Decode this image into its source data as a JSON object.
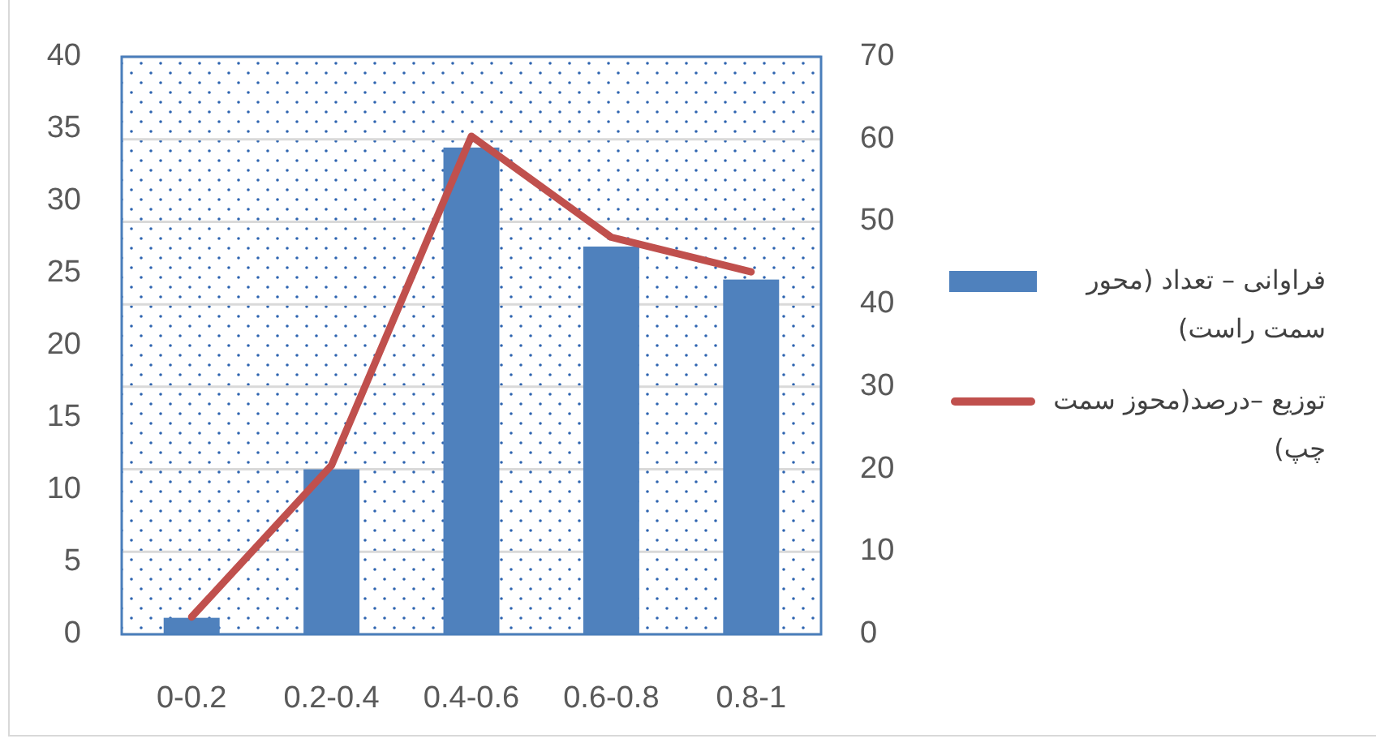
{
  "chart_data": {
    "type": "bar",
    "categories": [
      "0-0.2",
      "0.2-0.4",
      "0.4-0.6",
      "0.6-0.8",
      "0.8-1"
    ],
    "series": [
      {
        "name": "فراوانی – تعداد (محور سمت راست)",
        "axis": "y2",
        "color": "#4f81bd",
        "values": [
          2,
          20,
          59,
          47,
          43
        ]
      },
      {
        "name": "توزیع –درصد(محوز سمت چپ)",
        "type": "line",
        "color": "#c0504d",
        "values": [
          1.2,
          11.7,
          34.5,
          27.5,
          25.1
        ]
      }
    ],
    "ylim": [
      0,
      40
    ],
    "yticks": [
      0,
      5,
      10,
      15,
      20,
      25,
      30,
      35,
      40
    ],
    "y2lim": [
      0,
      70
    ],
    "y2ticks": [
      0,
      10,
      20,
      30,
      40,
      50,
      60,
      70
    ],
    "grid": "y2",
    "legend": "right"
  }
}
